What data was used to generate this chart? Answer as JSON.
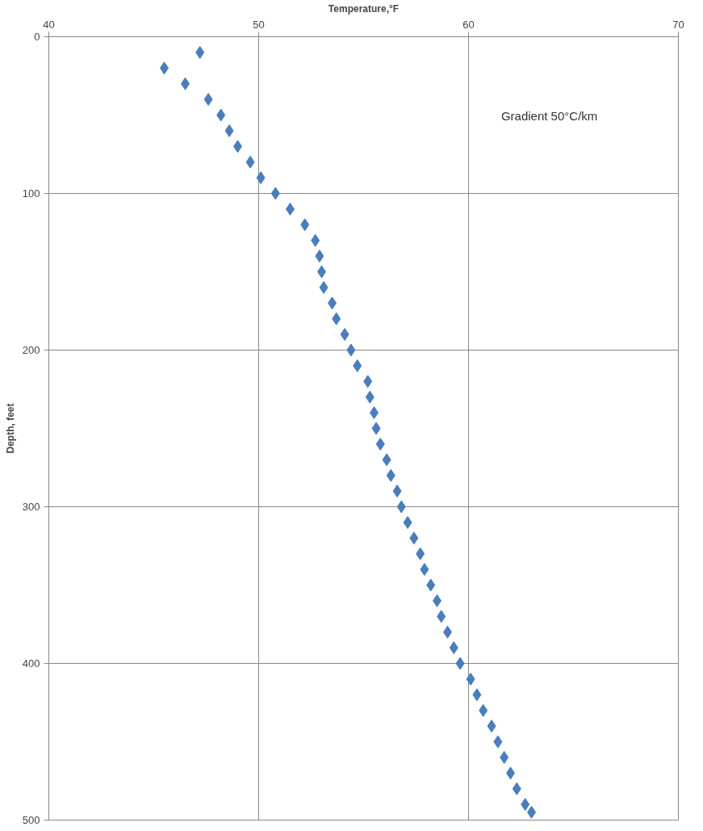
{
  "chart_data": {
    "type": "scatter",
    "xlabel": "Temperature,°F",
    "ylabel": "Depth, feet",
    "annotations": [
      "Gradient 50°C/km"
    ],
    "x": [
      47.2,
      45.5,
      46.5,
      47.6,
      48.2,
      48.6,
      49.0,
      49.6,
      50.1,
      50.8,
      51.5,
      52.2,
      52.7,
      52.9,
      53.0,
      53.1,
      53.5,
      53.7,
      54.1,
      54.4,
      54.7,
      55.2,
      55.3,
      55.5,
      55.6,
      55.8,
      56.1,
      56.3,
      56.6,
      56.8,
      57.1,
      57.4,
      57.7,
      57.9,
      58.2,
      58.5,
      58.7,
      59.0,
      59.3,
      59.6,
      60.1,
      60.4,
      60.7,
      61.1,
      61.4,
      61.7,
      62.0,
      62.3,
      62.7,
      63.0
    ],
    "values": [
      10,
      20,
      30,
      40,
      50,
      60,
      70,
      80,
      90,
      100,
      110,
      120,
      130,
      140,
      150,
      160,
      170,
      180,
      190,
      200,
      210,
      220,
      230,
      240,
      250,
      260,
      270,
      280,
      290,
      300,
      310,
      320,
      330,
      340,
      350,
      360,
      370,
      380,
      390,
      400,
      410,
      420,
      430,
      440,
      450,
      460,
      470,
      480,
      490,
      495
    ],
    "color": "#4a7ebb",
    "marker": "diamond",
    "grid": true,
    "xlim": [
      40,
      70
    ],
    "xticks": [
      40,
      50,
      60,
      70
    ],
    "ylim": [
      500,
      0
    ],
    "yticks": [
      0,
      100,
      200,
      300,
      400,
      500
    ]
  }
}
